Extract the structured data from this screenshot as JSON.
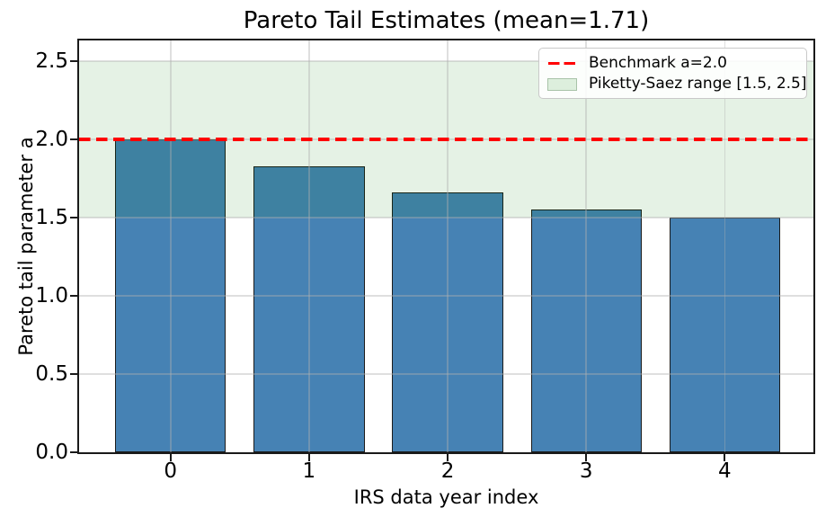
{
  "title": "Pareto Tail Estimates (mean=1.71)",
  "axes": {
    "xlabel": "IRS data year index",
    "ylabel": "Pareto tail parameter a",
    "xtick_labels": [
      "0",
      "1",
      "2",
      "3",
      "4"
    ],
    "ytick_labels": [
      "0.0",
      "0.5",
      "1.0",
      "1.5",
      "2.0",
      "2.5"
    ]
  },
  "legend": {
    "items": [
      {
        "label": "Benchmark a=2.0",
        "swatch": "red-dashed-line"
      },
      {
        "label": "Piketty-Saez range [1.5, 2.5]",
        "swatch": "green-band-patch"
      }
    ]
  },
  "chart_data": {
    "type": "bar",
    "title": "Pareto Tail Estimates (mean=1.71)",
    "xlabel": "IRS data year index",
    "ylabel": "Pareto tail parameter a",
    "categories": [
      0,
      1,
      2,
      3,
      4
    ],
    "values": [
      2.0,
      1.83,
      1.66,
      1.55,
      1.5
    ],
    "mean": 1.71,
    "bar_width": 0.8,
    "bar_color": "#4682b4",
    "bar_edge_color": "#1b1b1b",
    "xlim": [
      -0.66,
      4.64
    ],
    "ylim": [
      0,
      2.632
    ],
    "xticks": [
      0,
      1,
      2,
      3,
      4
    ],
    "yticks": [
      0.0,
      0.5,
      1.0,
      1.5,
      2.0,
      2.5
    ],
    "grid": true,
    "grid_color": "#b0b0b0",
    "benchmark_line": {
      "y": 2.0,
      "color": "#ff0000",
      "style": "dashed",
      "label": "Benchmark a=2.0"
    },
    "shaded_band": {
      "from": 1.5,
      "to": 2.5,
      "color": "#008000",
      "alpha": 0.1,
      "label": "Piketty-Saez range [1.5, 2.5]"
    },
    "legend_position": "upper right"
  }
}
